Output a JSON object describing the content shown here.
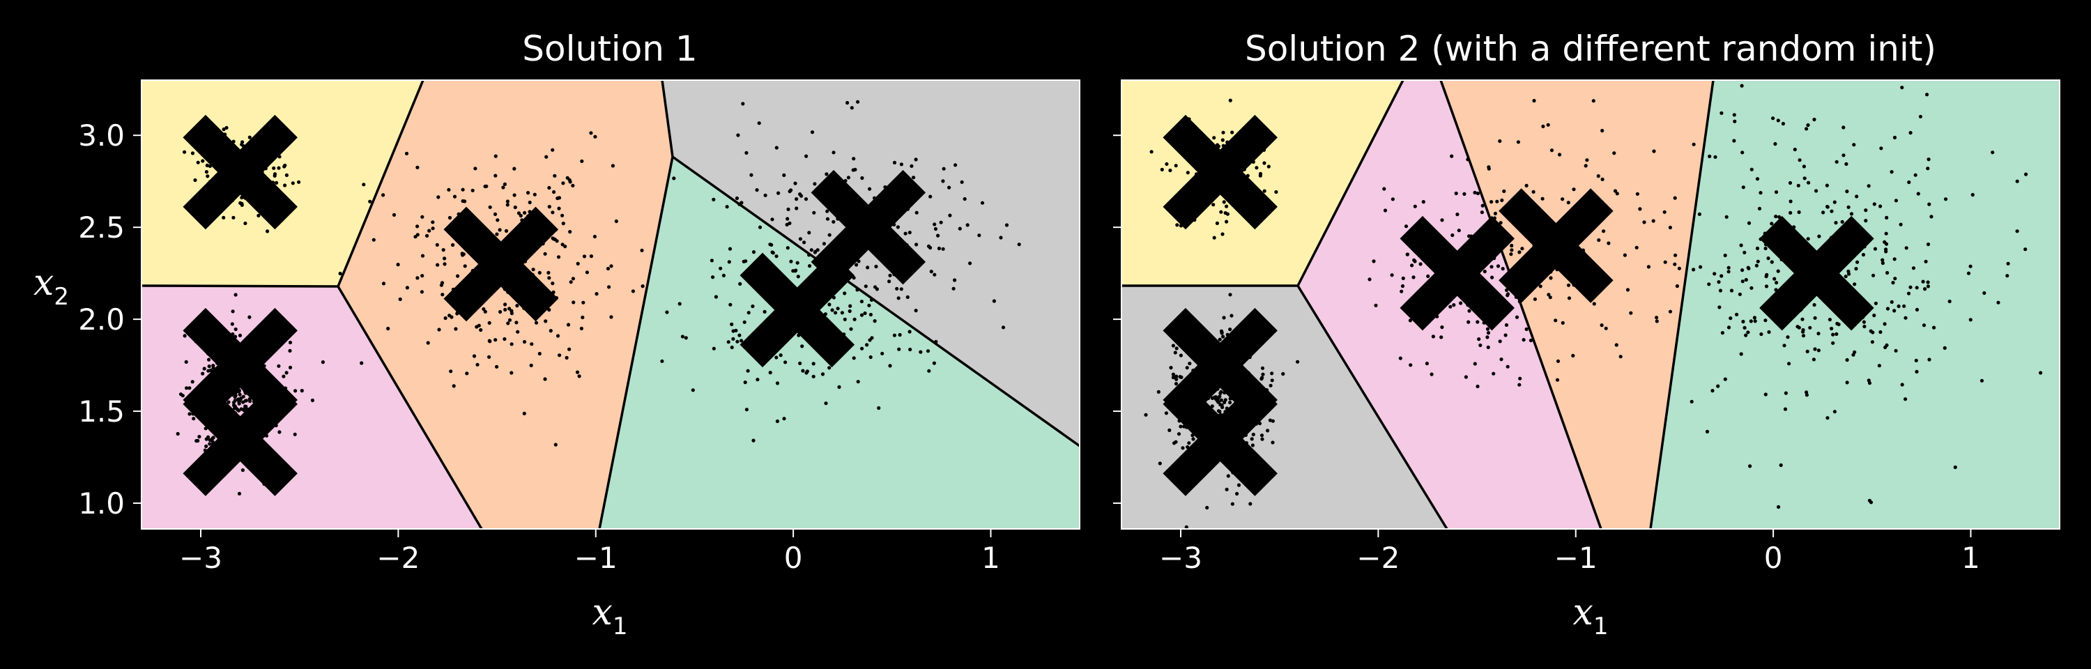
{
  "chart_data": [
    {
      "type": "scatter",
      "title": "Solution 1",
      "xlabel": "x1",
      "ylabel": "x2",
      "xlim": [
        -3.3,
        1.45
      ],
      "ylim": [
        0.86,
        3.3
      ],
      "xticks": [
        "−3",
        "−2",
        "−1",
        "0",
        "1"
      ],
      "yticks": [
        "1.0",
        "1.5",
        "2.0",
        "2.5",
        "3.0"
      ],
      "clusters": [
        {
          "region": "yellow",
          "color": "#fff2ae",
          "centroid": [
            -2.8,
            2.8
          ],
          "spread": [
            0.12,
            0.12
          ],
          "count": 140
        },
        {
          "region": "pink",
          "color": "#f4cae4",
          "centroid": [
            -2.8,
            1.55
          ],
          "spread": [
            0.12,
            0.2
          ],
          "count": 400
        },
        {
          "region": "orange",
          "color": "#fdcdac",
          "centroid": [
            -1.48,
            2.3
          ],
          "spread": [
            0.3,
            0.3
          ],
          "count": 260
        },
        {
          "region": "green",
          "color": "#b3e2cd",
          "centroid": [
            0.02,
            2.05
          ],
          "spread": [
            0.3,
            0.3
          ],
          "count": 170
        },
        {
          "region": "gray",
          "color": "#cccccc",
          "centroid": [
            0.38,
            2.5
          ],
          "spread": [
            0.3,
            0.3
          ],
          "count": 170
        }
      ],
      "centroids": [
        [
          -2.8,
          2.8
        ],
        [
          -2.8,
          1.75
        ],
        [
          -2.8,
          1.35
        ],
        [
          -1.48,
          2.3
        ],
        [
          0.02,
          2.05
        ],
        [
          0.38,
          2.5
        ]
      ]
    },
    {
      "type": "scatter",
      "title": "Solution 2 (with a different random init)",
      "xlabel": "x1",
      "ylabel": "",
      "xlim": [
        -3.3,
        1.45
      ],
      "ylim": [
        0.86,
        3.3
      ],
      "xticks": [
        "−3",
        "−2",
        "−1",
        "0",
        "1"
      ],
      "yticks": [],
      "clusters": [
        {
          "region": "yellow",
          "color": "#fff2ae",
          "centroid": [
            -2.8,
            2.8
          ],
          "spread": [
            0.12,
            0.12
          ],
          "count": 140
        },
        {
          "region": "gray",
          "color": "#cccccc",
          "centroid": [
            -2.8,
            1.55
          ],
          "spread": [
            0.12,
            0.2
          ],
          "count": 400
        },
        {
          "region": "pink",
          "color": "#f4cae4",
          "centroid": [
            -1.6,
            2.25
          ],
          "spread": [
            0.22,
            0.3
          ],
          "count": 150
        },
        {
          "region": "orange",
          "color": "#fdcdac",
          "centroid": [
            -1.1,
            2.4
          ],
          "spread": [
            0.22,
            0.3
          ],
          "count": 110
        },
        {
          "region": "green",
          "color": "#b3e2cd",
          "centroid": [
            0.22,
            2.25
          ],
          "spread": [
            0.4,
            0.42
          ],
          "count": 340
        }
      ],
      "centroids": [
        [
          -2.8,
          2.8
        ],
        [
          -2.8,
          1.75
        ],
        [
          -2.8,
          1.35
        ],
        [
          -1.6,
          2.25
        ],
        [
          -1.1,
          2.4
        ],
        [
          0.22,
          2.25
        ]
      ]
    }
  ]
}
